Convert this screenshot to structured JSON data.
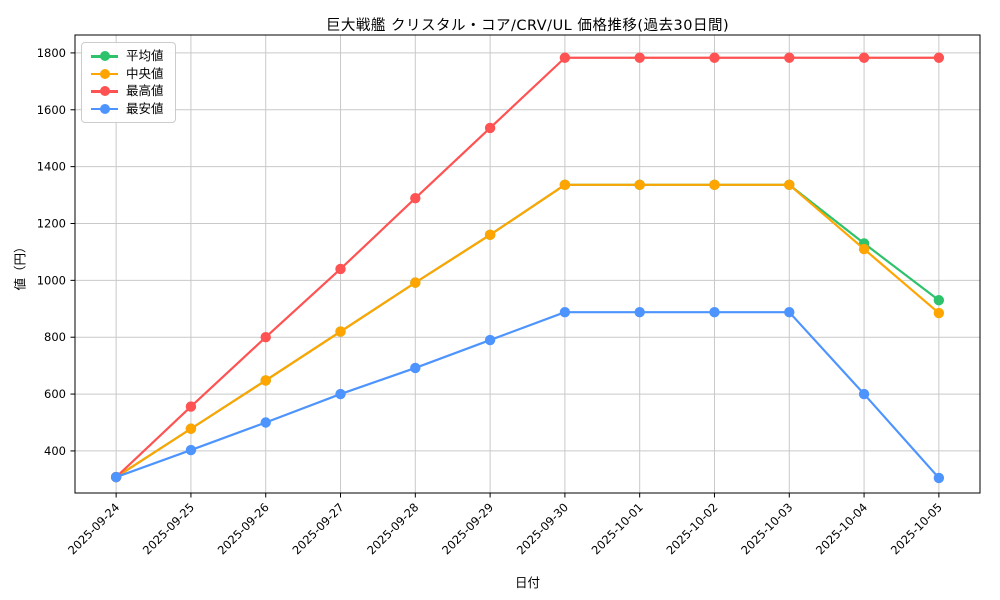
{
  "chart_data": {
    "type": "line",
    "title": "巨大戦艦 クリスタル・コア/CRV/UL 価格推移(過去30日間)",
    "xlabel": "日付",
    "ylabel": "値（円）",
    "x": [
      "2025-09-24",
      "2025-09-25",
      "2025-09-26",
      "2025-09-27",
      "2025-09-28",
      "2025-09-29",
      "2025-09-30",
      "2025-10-01",
      "2025-10-02",
      "2025-10-03",
      "2025-10-04",
      "2025-10-05"
    ],
    "series": [
      {
        "key": "average",
        "name": "平均値",
        "color": "#2dc26b",
        "values": [
          308,
          478,
          648,
          820,
          992,
          1160,
          1336,
          1336,
          1336,
          1336,
          1130,
          930
        ]
      },
      {
        "key": "median",
        "name": "中央値",
        "color": "#ffa502",
        "values": [
          308,
          478,
          648,
          820,
          992,
          1160,
          1336,
          1336,
          1336,
          1336,
          1110,
          885
        ]
      },
      {
        "key": "max",
        "name": "最高値",
        "color": "#ff5252",
        "values": [
          308,
          556,
          800,
          1040,
          1289,
          1536,
          1783,
          1783,
          1783,
          1783,
          1783,
          1783
        ]
      },
      {
        "key": "min",
        "name": "最安値",
        "color": "#4d94ff",
        "values": [
          308,
          403,
          500,
          600,
          692,
          790,
          888,
          888,
          888,
          888,
          600,
          305
        ]
      }
    ],
    "yticks": [
      400,
      600,
      800,
      1000,
      1200,
      1400,
      1600,
      1800
    ],
    "ylim": [
      252,
      1863
    ],
    "grid": true,
    "legend_position": "upper-left",
    "marker": "circle",
    "colors": {
      "grid": "#c9c9c9",
      "spine": "#000000",
      "tick_label": "#000000",
      "legend_border": "#cccccc",
      "background": "#ffffff"
    }
  }
}
